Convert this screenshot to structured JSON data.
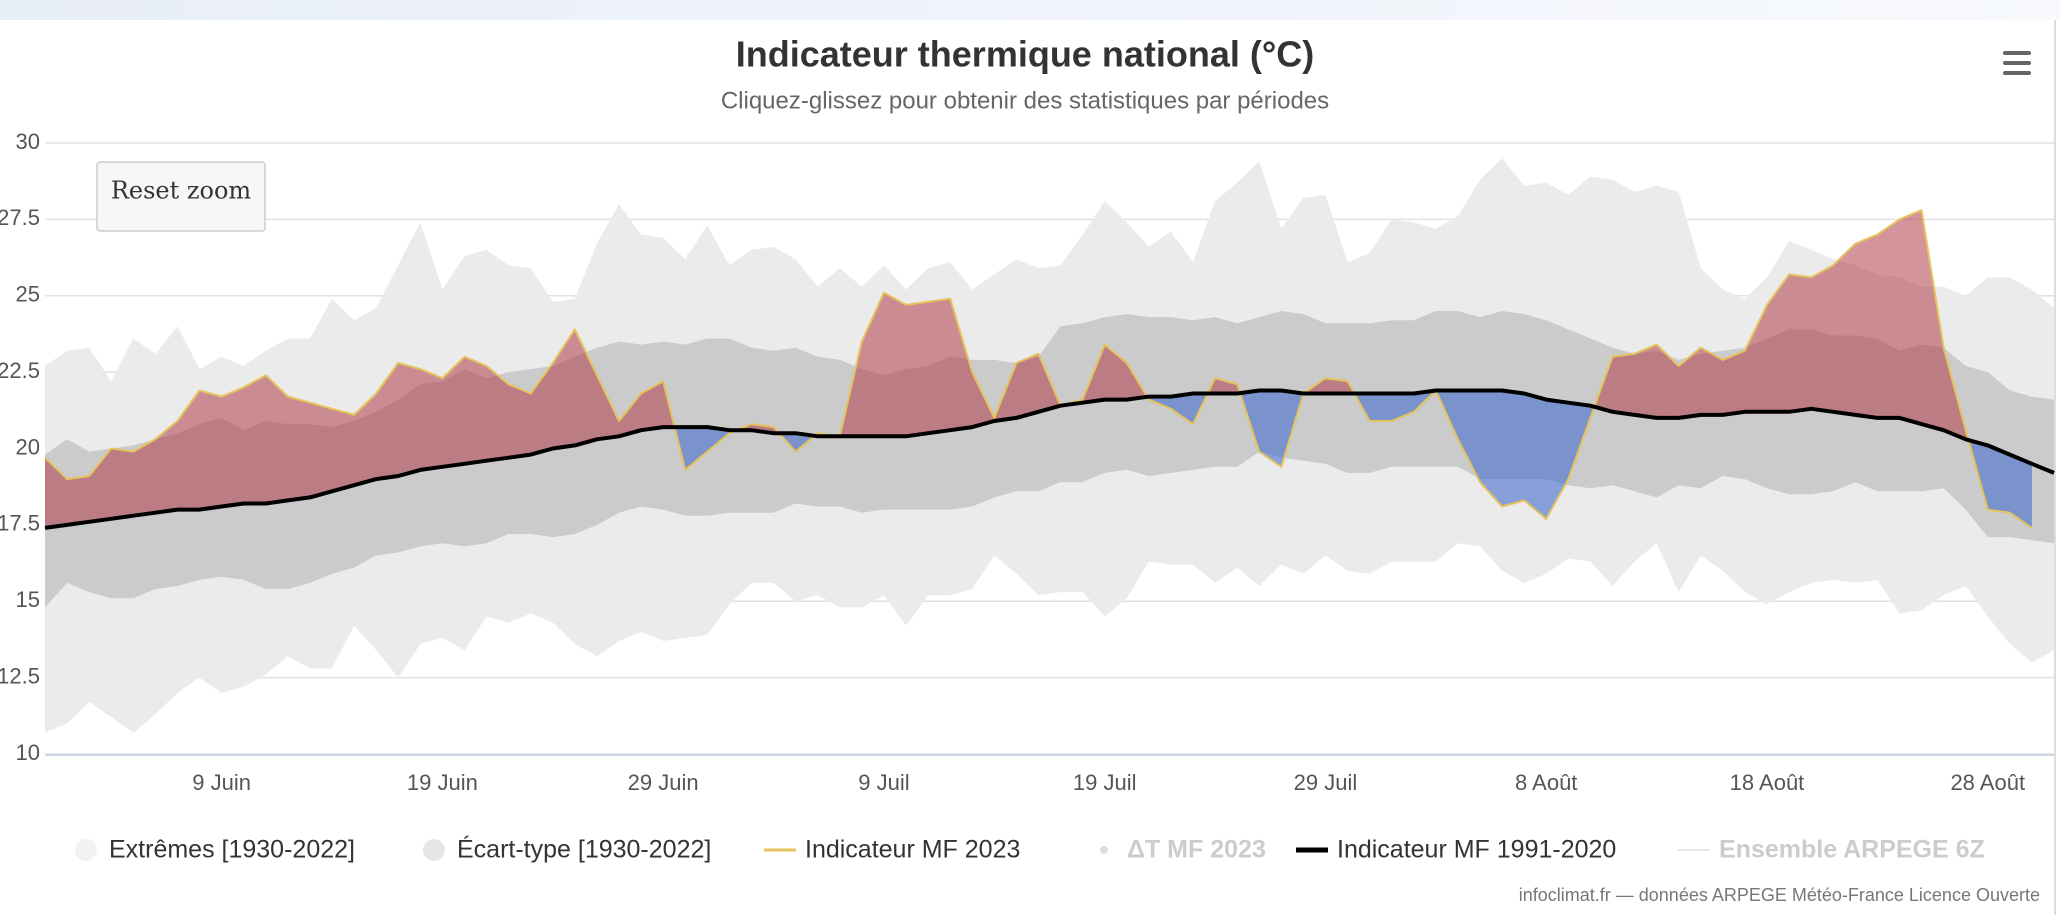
{
  "chart_data": {
    "type": "line",
    "title": "Indicateur thermique national (°C)",
    "subtitle": "Cliquez-glissez pour obtenir des statistiques par périodes",
    "reset_button": "Reset zoom",
    "credits": "infoclimat.fr — données ARPEGE Météo-France Licence Ouverte",
    "categories": [
      null,
      null,
      null,
      null,
      null,
      null,
      null,
      null,
      "9 Juin",
      null,
      null,
      null,
      null,
      null,
      null,
      null,
      null,
      null,
      "19 Juin",
      null,
      null,
      null,
      null,
      null,
      null,
      null,
      null,
      null,
      "29 Juin",
      null,
      null,
      null,
      null,
      null,
      null,
      null,
      null,
      null,
      "9 Juil",
      null,
      null,
      null,
      null,
      null,
      null,
      null,
      null,
      null,
      "19 Juil",
      null,
      null,
      null,
      null,
      null,
      null,
      null,
      null,
      null,
      "29 Juil",
      null,
      null,
      null,
      null,
      null,
      null,
      null,
      null,
      null,
      "8 Août",
      null,
      null,
      null,
      null,
      null,
      null,
      null,
      null,
      null,
      "18 Août",
      null,
      null,
      null,
      null,
      null,
      null,
      null,
      null,
      null,
      "28 Août",
      null,
      null,
      null
    ],
    "ylim": [
      10,
      30
    ],
    "yticks": [
      10,
      12.5,
      15,
      17.5,
      20,
      22.5,
      25,
      27.5,
      30
    ],
    "grid": true,
    "above_color": "rgba(176,60,72,0.55)",
    "below_color": "rgba(70,110,205,0.6)",
    "series": [
      {
        "name": "Extrêmes [1930-2022]",
        "type": "arearange",
        "color": "#ebebeb",
        "high": [
          22.7,
          23.2,
          23.3,
          22.2,
          23.6,
          23.1,
          24.0,
          22.6,
          23.0,
          22.7,
          23.2,
          23.6,
          23.6,
          24.9,
          24.2,
          24.6,
          26.0,
          27.4,
          25.2,
          26.3,
          26.5,
          26.0,
          25.9,
          24.8,
          24.9,
          26.7,
          28.0,
          27.0,
          26.9,
          26.2,
          27.3,
          26.0,
          26.5,
          26.6,
          26.2,
          25.3,
          25.9,
          25.3,
          26.0,
          25.2,
          25.9,
          26.1,
          25.2,
          25.7,
          26.2,
          25.9,
          26.0,
          27.0,
          28.1,
          27.4,
          26.6,
          27.1,
          26.1,
          28.1,
          28.7,
          29.4,
          27.2,
          28.2,
          28.3,
          26.1,
          26.4,
          27.5,
          27.4,
          27.2,
          27.6,
          28.8,
          29.5,
          28.6,
          28.7,
          28.3,
          28.9,
          28.8,
          28.4,
          28.6,
          28.4,
          25.9,
          25.2,
          24.9,
          25.6,
          26.8,
          26.5,
          26.2,
          26.0,
          25.7,
          25.6,
          25.3,
          25.3,
          25.0,
          25.6,
          25.6,
          25.2,
          24.6
        ],
        "low": [
          10.7,
          11.0,
          11.7,
          11.2,
          10.7,
          11.3,
          12.0,
          12.5,
          12.0,
          12.2,
          12.6,
          13.2,
          12.8,
          12.8,
          14.2,
          13.4,
          12.5,
          13.6,
          13.8,
          13.4,
          14.5,
          14.3,
          14.6,
          14.3,
          13.6,
          13.2,
          13.7,
          14.0,
          13.7,
          13.8,
          13.9,
          14.9,
          15.6,
          15.6,
          15.0,
          15.2,
          14.8,
          14.8,
          15.2,
          14.2,
          15.2,
          15.2,
          15.4,
          16.5,
          15.9,
          15.2,
          15.3,
          15.3,
          14.5,
          15.1,
          16.3,
          16.2,
          16.2,
          15.6,
          16.1,
          15.5,
          16.2,
          15.9,
          16.5,
          16.0,
          15.9,
          16.3,
          16.3,
          16.3,
          16.9,
          16.8,
          16.0,
          15.6,
          15.9,
          16.4,
          16.3,
          15.5,
          16.3,
          16.9,
          15.3,
          16.5,
          16.0,
          15.3,
          14.9,
          15.3,
          15.6,
          15.7,
          15.6,
          15.7,
          14.6,
          14.7,
          15.2,
          15.5,
          14.5,
          13.6,
          13.0,
          13.4
        ]
      },
      {
        "name": "Écart-type [1930-2022]",
        "type": "arearange",
        "color": "#cbcbcb",
        "high": [
          19.8,
          20.3,
          19.9,
          20.0,
          20.1,
          20.3,
          20.5,
          20.8,
          21.0,
          20.6,
          20.9,
          20.8,
          20.8,
          20.7,
          20.9,
          21.2,
          21.6,
          22.1,
          22.2,
          22.6,
          22.3,
          22.5,
          22.6,
          22.7,
          23.0,
          23.3,
          23.5,
          23.4,
          23.5,
          23.4,
          23.6,
          23.6,
          23.3,
          23.2,
          23.3,
          23.0,
          22.9,
          22.6,
          22.4,
          22.6,
          22.7,
          23.0,
          22.9,
          22.9,
          22.8,
          23.0,
          24.0,
          24.1,
          24.3,
          24.4,
          24.3,
          24.3,
          24.2,
          24.3,
          24.1,
          24.3,
          24.5,
          24.4,
          24.1,
          24.1,
          24.1,
          24.2,
          24.2,
          24.5,
          24.5,
          24.3,
          24.5,
          24.4,
          24.2,
          23.9,
          23.6,
          23.3,
          23.1,
          23.2,
          22.9,
          23.1,
          23.2,
          23.3,
          23.6,
          23.9,
          23.9,
          23.7,
          23.7,
          23.6,
          23.2,
          23.4,
          23.3,
          22.7,
          22.5,
          21.9,
          21.7,
          21.6
        ],
        "low": [
          14.8,
          15.6,
          15.3,
          15.1,
          15.1,
          15.4,
          15.5,
          15.7,
          15.8,
          15.7,
          15.4,
          15.4,
          15.6,
          15.9,
          16.1,
          16.5,
          16.6,
          16.8,
          16.9,
          16.8,
          16.9,
          17.2,
          17.2,
          17.1,
          17.2,
          17.5,
          17.9,
          18.1,
          18.0,
          17.8,
          17.8,
          17.9,
          17.9,
          17.9,
          18.2,
          18.1,
          18.1,
          17.9,
          18.0,
          18.0,
          18.0,
          18.0,
          18.1,
          18.4,
          18.6,
          18.6,
          18.9,
          18.9,
          19.2,
          19.3,
          19.1,
          19.2,
          19.3,
          19.4,
          19.4,
          19.9,
          19.7,
          19.6,
          19.5,
          19.2,
          19.2,
          19.4,
          19.4,
          19.4,
          19.4,
          19.0,
          19.0,
          19.0,
          19.0,
          18.8,
          18.7,
          18.8,
          18.6,
          18.4,
          18.8,
          18.7,
          19.1,
          19.0,
          18.7,
          18.5,
          18.5,
          18.6,
          18.9,
          18.6,
          18.6,
          18.6,
          18.7,
          18.0,
          17.1,
          17.1,
          17.0,
          16.9
        ]
      },
      {
        "name": "Indicateur MF 2023",
        "type": "line",
        "color": "#e3c35a",
        "width": 2,
        "values": [
          19.7,
          19.0,
          19.1,
          20.0,
          19.9,
          20.3,
          20.9,
          21.9,
          21.7,
          22.0,
          22.4,
          21.7,
          21.5,
          21.3,
          21.1,
          21.8,
          22.8,
          22.6,
          22.3,
          23.0,
          22.7,
          22.1,
          21.8,
          22.8,
          23.9,
          22.4,
          20.9,
          21.8,
          22.2,
          19.3,
          19.9,
          20.5,
          20.8,
          20.7,
          19.9,
          20.5,
          20.4,
          23.5,
          25.1,
          24.7,
          24.8,
          24.9,
          22.5,
          21.0,
          22.8,
          23.1,
          21.4,
          21.6,
          23.4,
          22.8,
          21.6,
          21.3,
          20.8,
          22.3,
          22.1,
          19.9,
          19.4,
          21.8,
          22.3,
          22.2,
          20.9,
          20.9,
          21.2,
          21.9,
          20.3,
          18.9,
          18.1,
          18.3,
          17.7,
          19.0,
          21.0,
          23.0,
          23.1,
          23.4,
          22.7,
          23.3,
          22.9,
          23.2,
          24.7,
          25.7,
          25.6,
          26.0,
          26.7,
          27.0,
          27.5,
          27.8,
          23.3,
          20.6,
          18.0,
          17.9,
          17.4,
          null
        ]
      },
      {
        "name": "ΔT MF 2023",
        "type": "scatter",
        "color": "#cccccc",
        "visible": false
      },
      {
        "name": "Indicateur MF 1991-2020",
        "type": "line",
        "color": "#000000",
        "width": 4,
        "values": [
          17.4,
          17.5,
          17.6,
          17.7,
          17.8,
          17.9,
          18.0,
          18.0,
          18.1,
          18.2,
          18.2,
          18.3,
          18.4,
          18.6,
          18.8,
          19.0,
          19.1,
          19.3,
          19.4,
          19.5,
          19.6,
          19.7,
          19.8,
          20.0,
          20.1,
          20.3,
          20.4,
          20.6,
          20.7,
          20.7,
          20.7,
          20.6,
          20.6,
          20.5,
          20.5,
          20.4,
          20.4,
          20.4,
          20.4,
          20.4,
          20.5,
          20.6,
          20.7,
          20.9,
          21.0,
          21.2,
          21.4,
          21.5,
          21.6,
          21.6,
          21.7,
          21.7,
          21.8,
          21.8,
          21.8,
          21.9,
          21.9,
          21.8,
          21.8,
          21.8,
          21.8,
          21.8,
          21.8,
          21.9,
          21.9,
          21.9,
          21.9,
          21.8,
          21.6,
          21.5,
          21.4,
          21.2,
          21.1,
          21.0,
          21.0,
          21.1,
          21.1,
          21.2,
          21.2,
          21.2,
          21.3,
          21.2,
          21.1,
          21.0,
          21.0,
          20.8,
          20.6,
          20.3,
          20.1,
          19.8,
          19.5,
          19.2
        ]
      },
      {
        "name": "Ensemble ARPEGE 6Z",
        "type": "line",
        "color": "#cccccc",
        "visible": false
      }
    ]
  }
}
